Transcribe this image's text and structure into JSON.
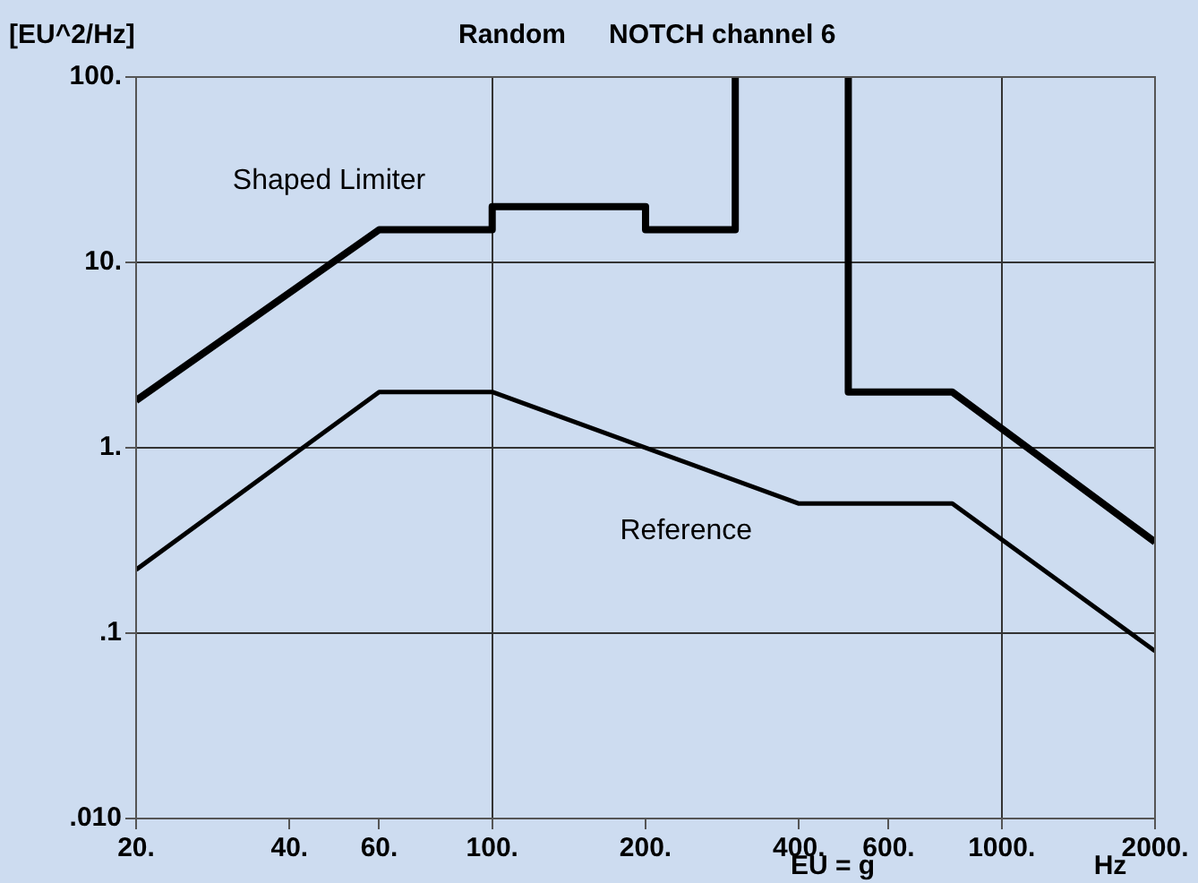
{
  "chart_data": {
    "type": "line",
    "title": "Random",
    "subtitle": "NOTCH channel 6",
    "ylabel": "[EU^2/Hz]",
    "xlabel": "Hz",
    "annotations": [
      "EU = g"
    ],
    "log": "xy",
    "grid": true,
    "legend": false,
    "marker": "none",
    "line_style": "solid",
    "xlim": [
      20,
      2000
    ],
    "ylim": [
      0.01,
      100
    ],
    "xticks": [
      {
        "value": 20,
        "label": "20."
      },
      {
        "value": 40,
        "label": "40."
      },
      {
        "value": 60,
        "label": "60."
      },
      {
        "value": 100,
        "label": "100."
      },
      {
        "value": 200,
        "label": "200."
      },
      {
        "value": 400,
        "label": "400."
      },
      {
        "value": 600,
        "label": "600."
      },
      {
        "value": 1000,
        "label": "1000."
      },
      {
        "value": 2000,
        "label": "2000."
      }
    ],
    "yticks": [
      {
        "value": 0.01,
        "label": ".010"
      },
      {
        "value": 0.1,
        "label": ".1"
      },
      {
        "value": 1,
        "label": "1."
      },
      {
        "value": 10,
        "label": "10."
      },
      {
        "value": 100,
        "label": "100."
      }
    ],
    "series": [
      {
        "name": "Shaped Limiter",
        "color": "#000000",
        "x": [
          20,
          60,
          100,
          100,
          200,
          200,
          300,
          300,
          500,
          500,
          800,
          2000
        ],
        "values": [
          1.8,
          15,
          15,
          20,
          20,
          15,
          15,
          100,
          100,
          2,
          2,
          0.31
        ]
      },
      {
        "name": "Reference",
        "color": "#000000",
        "x": [
          20,
          60,
          100,
          400,
          800,
          2000
        ],
        "values": [
          0.22,
          2,
          2,
          0.5,
          0.5,
          0.08
        ]
      }
    ]
  }
}
